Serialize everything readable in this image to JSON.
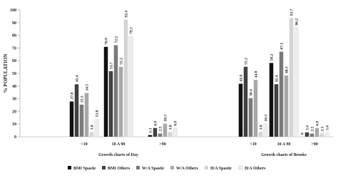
{
  "chart_data": {
    "type": "bar",
    "y_label": "% POPULATION",
    "categories": [
      "<10",
      "10 A 90",
      ">90",
      "<10",
      "10 A 90",
      ">90"
    ],
    "group_labels": [
      "Growth charts of Day",
      "Growth charts of Brooks"
    ],
    "ylim": [
      0,
      100
    ],
    "yticks": [
      0,
      10,
      20,
      30,
      40,
      50,
      60,
      70,
      80,
      90,
      100
    ],
    "series": [
      {
        "name": "BMI Spastic",
        "color": "#111111",
        "values": [
          27.8,
          70.9,
          1.3,
          41.8,
          58.2,
          0
        ]
      },
      {
        "name": "BMI Others",
        "color": "#404040",
        "values": [
          41.4,
          51.7,
          6.9,
          55.2,
          41.4,
          3.4
        ]
      },
      {
        "name": "W/A Spastic",
        "color": "#7a7a7a",
        "values": [
          25.3,
          72.2,
          2.5,
          30.4,
          67.1,
          2.5
        ]
      },
      {
        "name": "W/A Others",
        "color": "#a8a8a8",
        "values": [
          34.5,
          55.2,
          10.3,
          44.8,
          48.3,
          6.9
        ]
      },
      {
        "name": "H/A Spastic",
        "color": "#d4d4d4",
        "values": [
          3.8,
          92.4,
          3.8,
          3.8,
          93.7,
          2.5
        ]
      },
      {
        "name": "H/A Others",
        "color": "#ededed",
        "values": [
          13.8,
          79.3,
          6.9,
          10.3,
          86.2,
          3.4
        ]
      }
    ]
  }
}
